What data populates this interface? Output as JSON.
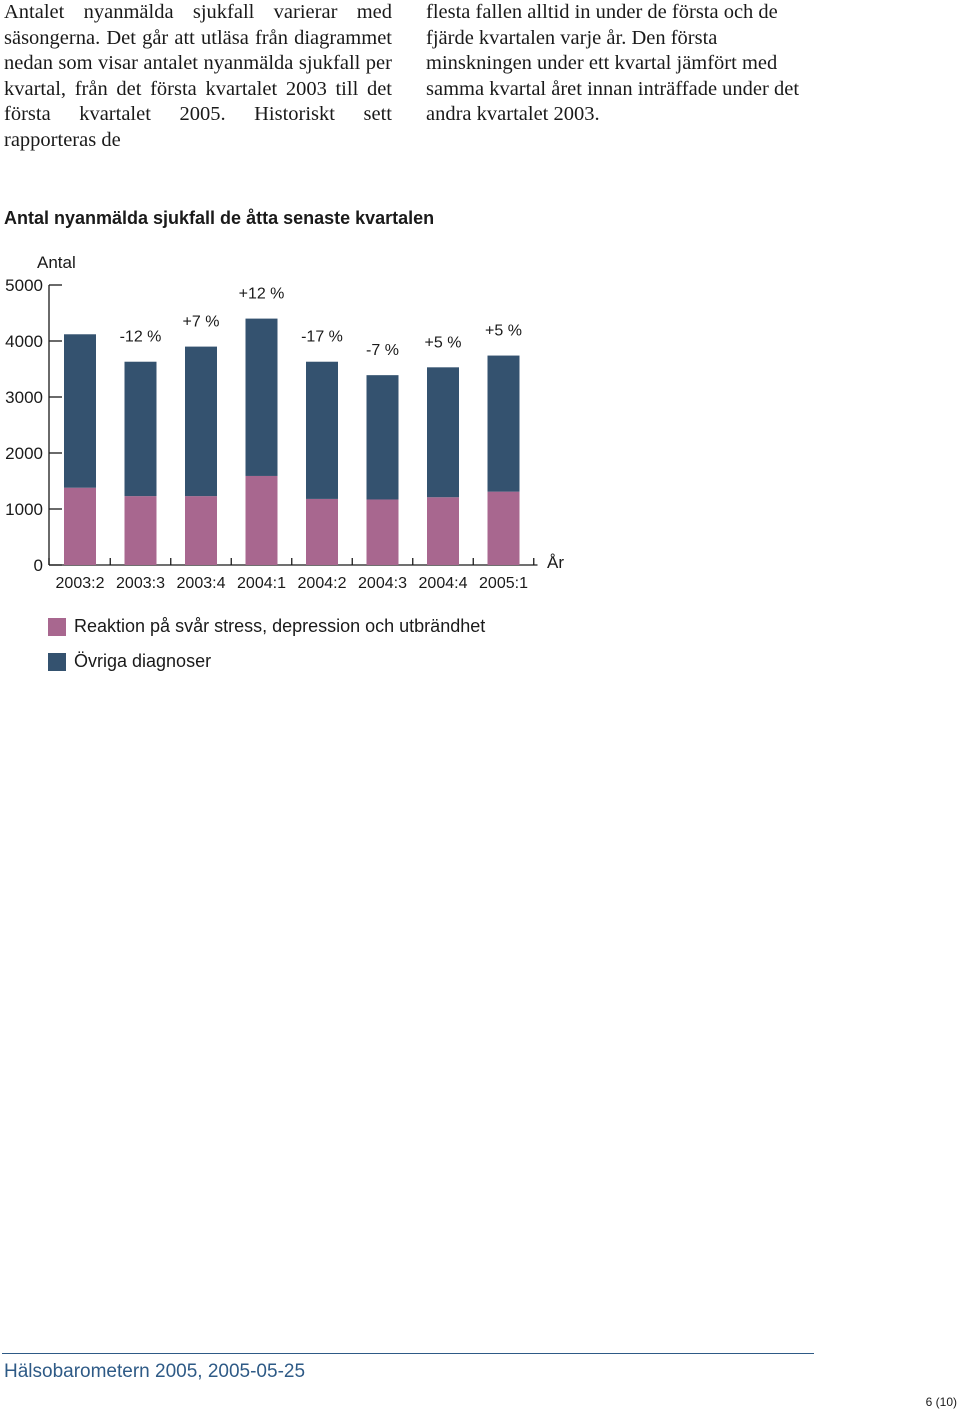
{
  "body_text": {
    "left_column": "Antalet nyanmälda sjukfall varierar med säsongerna. Det går att utläsa från diagrammet nedan som visar antalet nyanmälda sjukfall per kvartal, från det första kvartalet 2003 till det första kvartalet 2005. Historiskt sett rapporteras de",
    "right_column": "flesta fallen alltid in under de första och de fjärde kvartalen varje år. Den första minskningen under ett kvartal jämfört med samma kvartal året innan inträffade under det andra kvartalet 2003."
  },
  "chart_data": {
    "type": "bar",
    "stacked": true,
    "title": "Antal nyanmälda sjukfall de åtta senaste kvartalen",
    "ylabel": "Antal",
    "xlabel": "År",
    "ylim": [
      0,
      5000
    ],
    "yticks": [
      0,
      1000,
      2000,
      3000,
      4000,
      5000
    ],
    "categories": [
      "2003:2",
      "2003:3",
      "2003:4",
      "2004:1",
      "2004:2",
      "2004:3",
      "2004:4",
      "2005:1"
    ],
    "series": [
      {
        "name": "Reaktion på svår stress, depression och utbrändhet",
        "color": "#a8678f",
        "values": [
          1380,
          1230,
          1230,
          1590,
          1180,
          1170,
          1210,
          1310
        ]
      },
      {
        "name": "Övriga diagnoser",
        "color": "#34526f",
        "values": [
          2740,
          2400,
          2670,
          2810,
          2450,
          2220,
          2320,
          2430
        ]
      }
    ],
    "annotations": [
      "",
      "-12 %",
      "+7 %",
      "+12 %",
      "-17 %",
      "-7 %",
      "+5 %",
      "+5 %"
    ],
    "grid": false,
    "legend_position": "bottom-left"
  },
  "footer": {
    "publication": "Hälsobarometern 2005, 2005-05-25",
    "page_number": "6 (10)",
    "accent_color": "#2e5a86"
  }
}
